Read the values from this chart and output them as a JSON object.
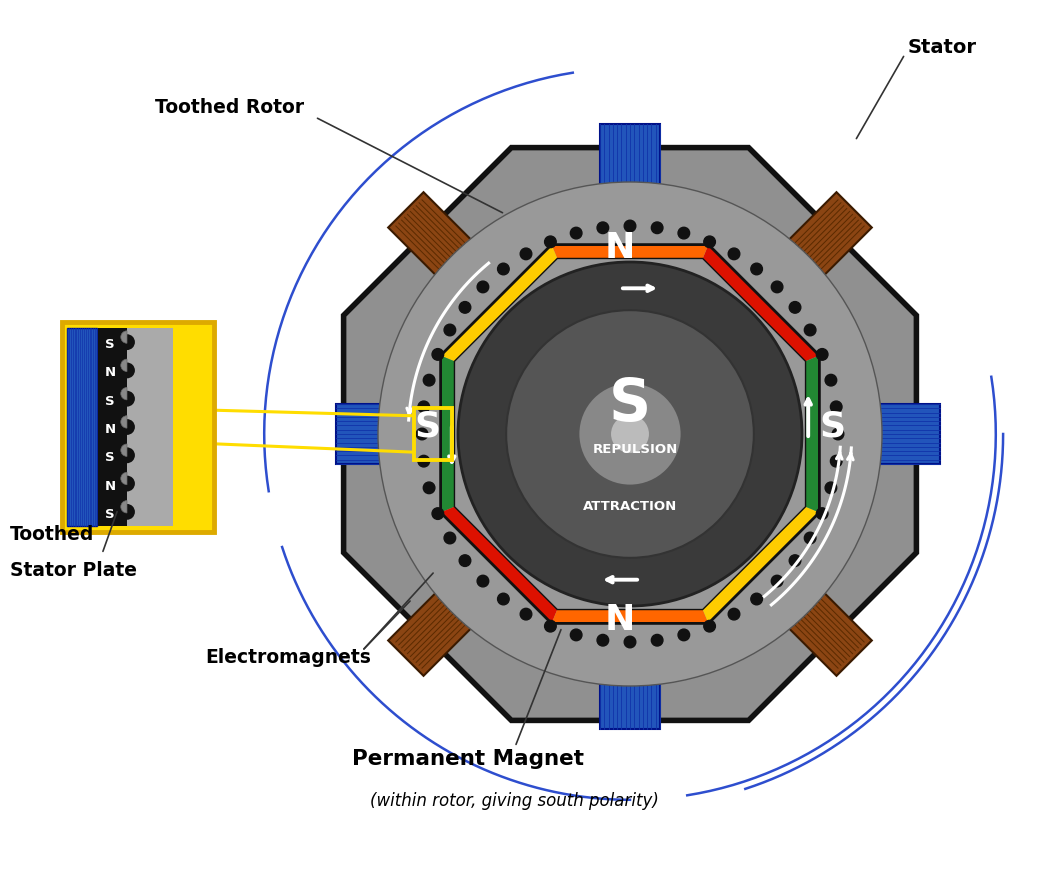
{
  "bg_color": "#ffffff",
  "stator_fill_color": "#909090",
  "stator_edge_color": "#111111",
  "coil_color": "#8B4513",
  "coil_lines_color": "#5a2a00",
  "blue_bar_color": "#2255bb",
  "blue_bar_edge": "#001188",
  "blue_bar_stripe": "#1133aa",
  "rotor_face_colors": [
    "#dd1100",
    "#ff6600",
    "#ffcc00",
    "#228833",
    "#dd1100",
    "#ff6600",
    "#ffcc00",
    "#228833"
  ],
  "tooth_color": "#111111",
  "rotor_disk_color": "#3a3a3a",
  "rotor_ring2_color": "#4a4a4a",
  "hub_color": "#888888",
  "shaft_color": "#bbbbbb",
  "text_white": "#ffffff",
  "text_black": "#000000",
  "blue_field_color": "#2244cc",
  "brown_field_color": "#7a3a00",
  "white_arrow_color": "#ffffff",
  "yellow_inset": "#ffdd00",
  "yellow_inset_edge": "#ddaa00",
  "label_stator": "Stator",
  "label_toothed_rotor": "Toothed Rotor",
  "label_toothed_stator": "Toothed\nStator Plate",
  "label_electromagnets": "Electromagnets",
  "label_permanent_magnet": "Permanent Magnet",
  "label_perm_sub": "(within rotor, giving south polarity)",
  "label_repulsion": "REPULSION",
  "label_attraction": "ATTRACTION",
  "label_S_left": "S",
  "label_S_right": "S",
  "label_N_top": "N",
  "label_N_bottom": "N",
  "label_S_rotor": "S"
}
